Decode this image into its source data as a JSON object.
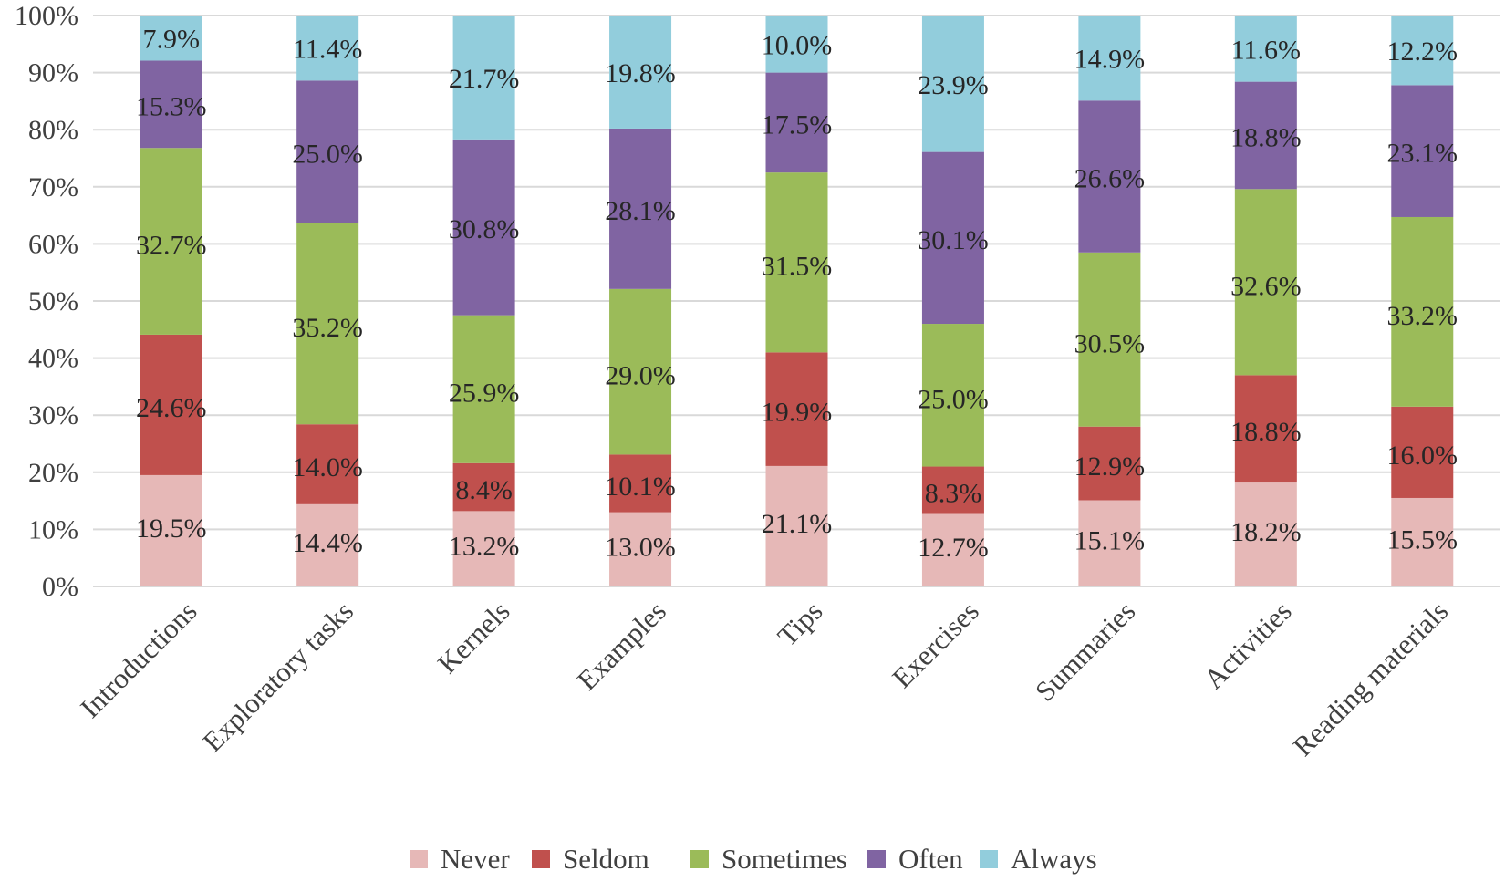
{
  "chart_data": {
    "type": "bar",
    "stacked": true,
    "percent_stacked": true,
    "title": "",
    "xlabel": "",
    "ylabel": "",
    "ylim": [
      0,
      100
    ],
    "y_ticks": [
      0,
      10,
      20,
      30,
      40,
      50,
      60,
      70,
      80,
      90,
      100
    ],
    "y_tick_labels": [
      "0%",
      "10%",
      "20%",
      "30%",
      "40%",
      "50%",
      "60%",
      "70%",
      "80%",
      "90%",
      "100%"
    ],
    "grid": true,
    "legend_position": "bottom",
    "categories": [
      "Introductions",
      "Exploratory tasks",
      "Kernels",
      "Examples",
      "Tips",
      "Exercises",
      "Summaries",
      "Activities",
      "Reading materials"
    ],
    "series": [
      {
        "name": "Never",
        "color": "#e6b8b7",
        "values": [
          19.5,
          14.4,
          13.2,
          13.0,
          21.1,
          12.7,
          15.1,
          18.2,
          15.5
        ],
        "labels": [
          "19.5%",
          "14.4%",
          "13.2%",
          "13.0%",
          "21.1%",
          "12.7%",
          "15.1%",
          "18.2%",
          "15.5%"
        ]
      },
      {
        "name": "Seldom",
        "color": "#c0504d",
        "values": [
          24.6,
          14.0,
          8.4,
          10.1,
          19.9,
          8.3,
          12.9,
          18.8,
          16.0
        ],
        "labels": [
          "24.6%",
          "14.0%",
          "8.4%",
          "10.1%",
          "19.9%",
          "8.3%",
          "12.9%",
          "18.8%",
          "16.0%"
        ]
      },
      {
        "name": "Sometimes",
        "color": "#9bbb59",
        "values": [
          32.7,
          35.2,
          25.9,
          29.0,
          31.5,
          25.0,
          30.5,
          32.6,
          33.2
        ],
        "labels": [
          "32.7%",
          "35.2%",
          "25.9%",
          "29.0%",
          "31.5%",
          "25.0%",
          "30.5%",
          "32.6%",
          "33.2%"
        ]
      },
      {
        "name": "Often",
        "color": "#8064a2",
        "values": [
          15.3,
          25.0,
          30.8,
          28.1,
          17.5,
          30.1,
          26.6,
          18.8,
          23.1
        ],
        "labels": [
          "15.3%",
          "25.0%",
          "30.8%",
          "28.1%",
          "17.5%",
          "30.1%",
          "26.6%",
          "18.8%",
          "23.1%"
        ]
      },
      {
        "name": "Always",
        "color": "#92cddc",
        "values": [
          7.9,
          11.4,
          21.7,
          19.8,
          10.0,
          23.9,
          14.9,
          11.6,
          12.2
        ],
        "labels": [
          "7.9%",
          "11.4%",
          "21.7%",
          "19.8%",
          "10.0%",
          "23.9%",
          "14.9%",
          "11.6%",
          "12.2%"
        ]
      }
    ]
  }
}
